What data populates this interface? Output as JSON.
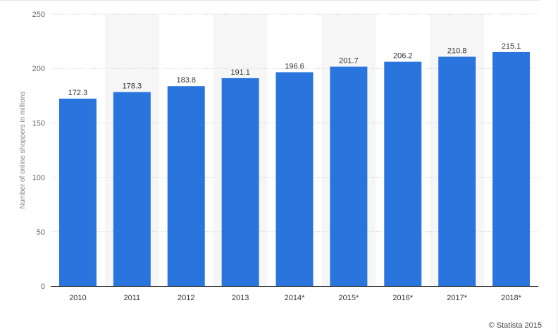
{
  "chart_data": {
    "type": "bar",
    "categories": [
      "2010",
      "2011",
      "2012",
      "2013",
      "2014*",
      "2015*",
      "2016*",
      "2017*",
      "2018*"
    ],
    "values": [
      172.3,
      178.3,
      183.8,
      191.1,
      196.6,
      201.7,
      206.2,
      210.8,
      215.1
    ],
    "value_labels": [
      "172.3",
      "178.3",
      "183.8",
      "191.1",
      "196.6",
      "201.7",
      "206.2",
      "210.8",
      "215.1"
    ],
    "title": "",
    "xlabel": "",
    "ylabel": "Number of online shoppers in millions",
    "ylim": [
      0,
      250
    ],
    "yticks": [
      "0",
      "50",
      "100",
      "150",
      "200",
      "250"
    ],
    "grid": true,
    "legend": "none"
  },
  "colors": {
    "bar": "#2a75dd",
    "band": "#f6f6f6",
    "grid": "#c8c8c8"
  },
  "credit": "© Statista 2015"
}
